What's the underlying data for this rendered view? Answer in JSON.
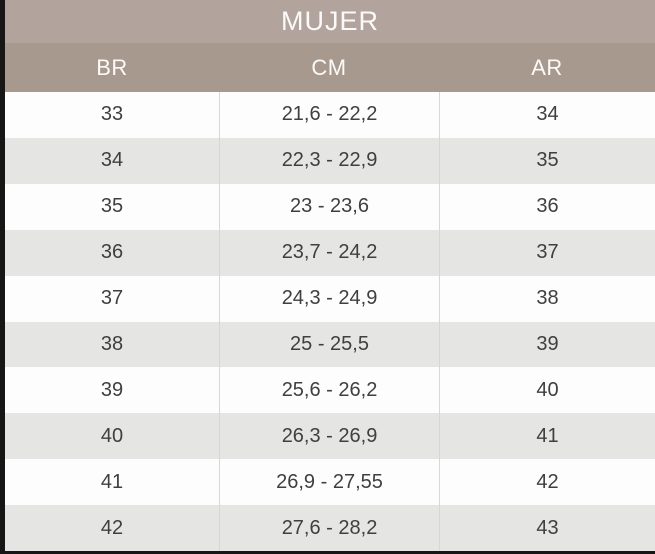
{
  "colors": {
    "frame_color": "#161616",
    "title_bg": "#b2a49d",
    "header_bg": "#a8998f",
    "header_text": "#fbfaf9",
    "row_bg": "#fdfdfd",
    "row_alt_bg": "#e5e5e4",
    "cell_text": "#3f3f3f",
    "divider_color": "#d7d7d6"
  },
  "table": {
    "title": "MUJER",
    "columns": [
      "BR",
      "CM",
      "AR"
    ],
    "rows": [
      [
        "33",
        "21,6 - 22,2",
        "34"
      ],
      [
        "34",
        "22,3 - 22,9",
        "35"
      ],
      [
        "35",
        "23 - 23,6",
        "36"
      ],
      [
        "36",
        "23,7 - 24,2",
        "37"
      ],
      [
        "37",
        "24,3 - 24,9",
        "38"
      ],
      [
        "38",
        "25 - 25,5",
        "39"
      ],
      [
        "39",
        "25,6 - 26,2",
        "40"
      ],
      [
        "40",
        "26,3 - 26,9",
        "41"
      ],
      [
        "41",
        "26,9 - 27,55",
        "42"
      ],
      [
        "42",
        "27,6 - 28,2",
        "43"
      ]
    ]
  },
  "chart_data": {
    "type": "table",
    "title": "MUJER",
    "columns": [
      "BR",
      "CM",
      "AR"
    ],
    "rows": [
      [
        "33",
        "21,6 - 22,2",
        "34"
      ],
      [
        "34",
        "22,3 - 22,9",
        "35"
      ],
      [
        "35",
        "23 - 23,6",
        "36"
      ],
      [
        "36",
        "23,7 - 24,2",
        "37"
      ],
      [
        "37",
        "24,3 - 24,9",
        "38"
      ],
      [
        "38",
        "25 - 25,5",
        "39"
      ],
      [
        "39",
        "25,6 - 26,2",
        "40"
      ],
      [
        "40",
        "26,3 - 26,9",
        "41"
      ],
      [
        "41",
        "26,9 - 27,55",
        "42"
      ],
      [
        "42",
        "27,6 - 28,2",
        "43"
      ]
    ]
  }
}
